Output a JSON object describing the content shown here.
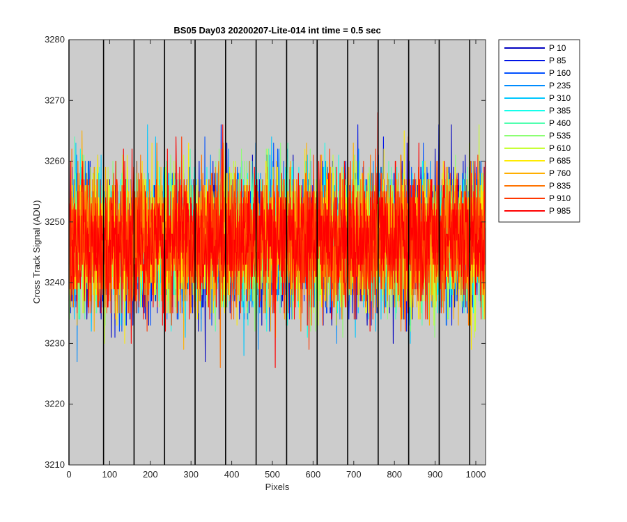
{
  "chart_data": {
    "type": "line",
    "title": "BS05 Day03 20200207-Lite-014 int time = 0.5 sec",
    "xlabel": "Pixels",
    "ylabel": "Cross Track Signal (ADU)",
    "xlim": [
      0,
      1024
    ],
    "ylim": [
      3210,
      3280
    ],
    "x_ticks": [
      0,
      100,
      200,
      300,
      400,
      500,
      600,
      700,
      800,
      900,
      1000
    ],
    "y_ticks": [
      3210,
      3220,
      3230,
      3240,
      3250,
      3260,
      3270,
      3280
    ],
    "vertical_lines": [
      0,
      85,
      160,
      235,
      310,
      385,
      460,
      535,
      610,
      685,
      760,
      835,
      910,
      985
    ],
    "background_color": "#cccccc",
    "legend_position": "outside-right-top",
    "series_model": {
      "mean": 3247,
      "noise_std": 5.5,
      "approximate_range": [
        3217,
        3274
      ],
      "points_per_series": 1024
    },
    "series": [
      {
        "name": "P 10",
        "color": "#0000bf"
      },
      {
        "name": "P 85",
        "color": "#0014e6"
      },
      {
        "name": "P 160",
        "color": "#0050ff"
      },
      {
        "name": "P 235",
        "color": "#008cff"
      },
      {
        "name": "P 310",
        "color": "#00c8ff"
      },
      {
        "name": "P 385",
        "color": "#14ffeb"
      },
      {
        "name": "P 460",
        "color": "#50ffaf"
      },
      {
        "name": "P 535",
        "color": "#8cff73"
      },
      {
        "name": "P 610",
        "color": "#c8ff37"
      },
      {
        "name": "P 685",
        "color": "#ffeb00"
      },
      {
        "name": "P 760",
        "color": "#ffaf00"
      },
      {
        "name": "P 835",
        "color": "#ff7300"
      },
      {
        "name": "P 910",
        "color": "#ff3700"
      },
      {
        "name": "P 985",
        "color": "#ff0000"
      }
    ]
  }
}
